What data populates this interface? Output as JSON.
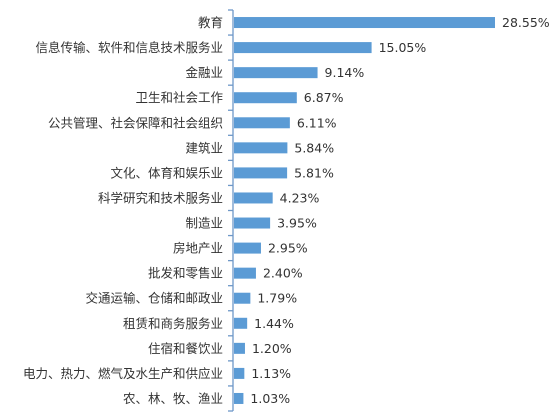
{
  "chart_data": {
    "type": "bar",
    "orientation": "horizontal",
    "categories": [
      "教育",
      "信息传输、软件和信息技术服务业",
      "金融业",
      "卫生和社会工作",
      "公共管理、社会保障和社会组织",
      "建筑业",
      "文化、体育和娱乐业",
      "科学研究和技术服务业",
      "制造业",
      "房地产业",
      "批发和零售业",
      "交通运输、仓储和邮政业",
      "租赁和商务服务业",
      "住宿和餐饮业",
      "电力、热力、燃气及水生产和供应业",
      "农、林、牧、渔业"
    ],
    "values": [
      28.55,
      15.05,
      9.14,
      6.87,
      6.11,
      5.84,
      5.81,
      4.23,
      3.95,
      2.95,
      2.4,
      1.79,
      1.44,
      1.2,
      1.13,
      1.03
    ],
    "data_labels": [
      "28.55%",
      "15.05%",
      "9.14%",
      "6.87%",
      "6.11%",
      "5.84%",
      "5.81%",
      "4.23%",
      "3.95%",
      "2.95%",
      "2.40%",
      "1.79%",
      "1.44%",
      "1.20%",
      "1.13%",
      "1.03%"
    ],
    "bar_color": "#5b9bd5",
    "axis_color": "#6e98c8",
    "title": "",
    "xlabel": "",
    "ylabel": "",
    "xlim": [
      0,
      30
    ],
    "grid": false,
    "legend": "none"
  }
}
